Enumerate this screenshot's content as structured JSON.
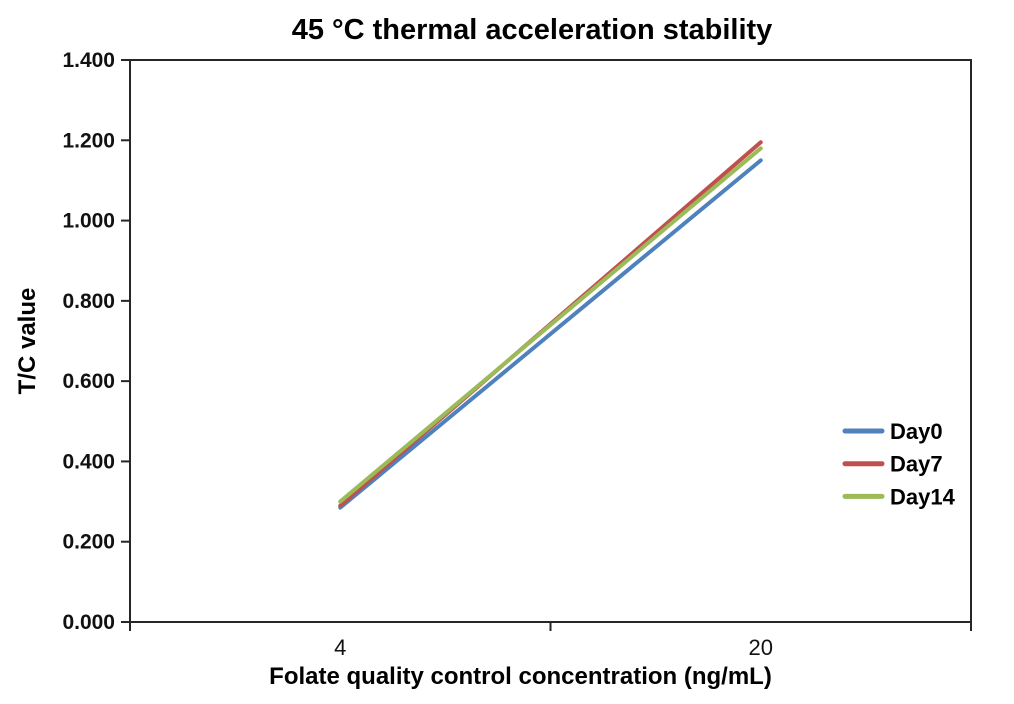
{
  "chart_data": {
    "type": "line",
    "title": "45 °C thermal acceleration stability",
    "xlabel": "Folate quality control concentration (ng/mL)",
    "ylabel": "T/C value",
    "categories": [
      "4",
      "20"
    ],
    "series": [
      {
        "name": "Day0",
        "color": "#4F81BD",
        "values": [
          0.285,
          1.15
        ]
      },
      {
        "name": "Day7",
        "color": "#C0504D",
        "values": [
          0.29,
          1.195
        ]
      },
      {
        "name": "Day14",
        "color": "#9BBB59",
        "values": [
          0.3,
          1.18
        ]
      }
    ],
    "ylim": [
      0,
      1.4
    ],
    "ytick_step": 0.2,
    "ytick_labels": [
      "0.000",
      "0.200",
      "0.400",
      "0.600",
      "0.800",
      "1.000",
      "1.200",
      "1.400"
    ],
    "grid": false,
    "legend_position": "inside-right",
    "axis_color": "#262626",
    "text_color": "#000000",
    "background": "#ffffff",
    "line_width": 4,
    "markers": false
  }
}
